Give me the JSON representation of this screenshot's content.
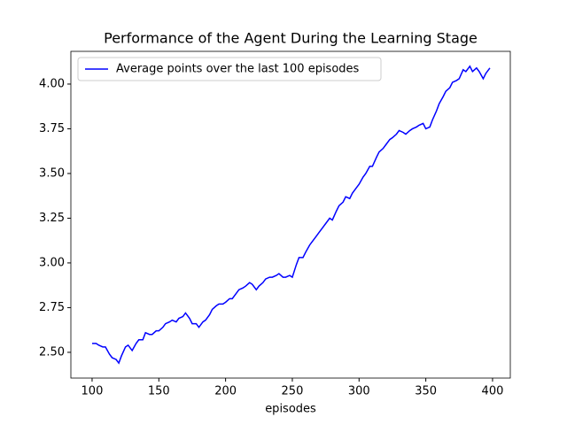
{
  "chart_data": {
    "type": "line",
    "title": "Performance of the Agent During the Learning Stage",
    "x_label": "episodes",
    "x": [
      100,
      103,
      105,
      108,
      110,
      113,
      115,
      118,
      120,
      122,
      125,
      127,
      130,
      133,
      135,
      138,
      140,
      143,
      145,
      148,
      150,
      153,
      155,
      158,
      160,
      163,
      165,
      168,
      170,
      173,
      175,
      178,
      180,
      183,
      185,
      188,
      190,
      193,
      195,
      198,
      200,
      203,
      205,
      208,
      210,
      213,
      215,
      218,
      220,
      223,
      225,
      228,
      230,
      233,
      235,
      238,
      240,
      243,
      245,
      248,
      250,
      253,
      255,
      258,
      260,
      263,
      265,
      268,
      270,
      273,
      275,
      278,
      280,
      283,
      285,
      288,
      290,
      293,
      295,
      298,
      300,
      303,
      305,
      308,
      310,
      313,
      315,
      318,
      320,
      323,
      325,
      328,
      330,
      333,
      335,
      338,
      340,
      343,
      345,
      348,
      350,
      353,
      355,
      358,
      360,
      363,
      365,
      368,
      370,
      373,
      375,
      378,
      380,
      383,
      385,
      388,
      390,
      393,
      395,
      398
    ],
    "series": [
      {
        "name": "Average points over the last 100 episodes",
        "color": "#0000ff",
        "values": [
          2.55,
          2.55,
          2.54,
          2.53,
          2.53,
          2.49,
          2.47,
          2.46,
          2.44,
          2.48,
          2.53,
          2.54,
          2.51,
          2.55,
          2.57,
          2.57,
          2.61,
          2.6,
          2.6,
          2.62,
          2.62,
          2.64,
          2.66,
          2.67,
          2.68,
          2.67,
          2.69,
          2.7,
          2.72,
          2.69,
          2.66,
          2.66,
          2.64,
          2.67,
          2.68,
          2.71,
          2.74,
          2.76,
          2.77,
          2.77,
          2.78,
          2.8,
          2.8,
          2.83,
          2.85,
          2.86,
          2.87,
          2.89,
          2.88,
          2.85,
          2.87,
          2.89,
          2.91,
          2.92,
          2.92,
          2.93,
          2.94,
          2.92,
          2.92,
          2.93,
          2.92,
          2.99,
          3.03,
          3.03,
          3.06,
          3.1,
          3.12,
          3.15,
          3.17,
          3.2,
          3.22,
          3.25,
          3.24,
          3.29,
          3.32,
          3.34,
          3.37,
          3.36,
          3.39,
          3.42,
          3.44,
          3.48,
          3.5,
          3.54,
          3.54,
          3.59,
          3.62,
          3.64,
          3.66,
          3.69,
          3.7,
          3.72,
          3.74,
          3.73,
          3.72,
          3.74,
          3.75,
          3.76,
          3.77,
          3.78,
          3.75,
          3.76,
          3.8,
          3.85,
          3.89,
          3.93,
          3.96,
          3.98,
          4.01,
          4.02,
          4.03,
          4.08,
          4.07,
          4.1,
          4.07,
          4.09,
          4.07,
          4.03,
          4.06,
          4.09
        ]
      }
    ],
    "xlim": [
      84.1,
      413.3
    ],
    "ylim": [
      2.356,
      4.183
    ],
    "xticks": [
      100,
      150,
      200,
      250,
      300,
      350,
      400
    ],
    "yticks": [
      {
        "value": 2.5,
        "label": "2.50"
      },
      {
        "value": 2.75,
        "label": "2.75"
      },
      {
        "value": 3.0,
        "label": "3.00"
      },
      {
        "value": 3.25,
        "label": "3.25"
      },
      {
        "value": 3.5,
        "label": "3.50"
      },
      {
        "value": 3.75,
        "label": "3.75"
      },
      {
        "value": 4.0,
        "label": "4.00"
      }
    ],
    "legend": "upper left"
  }
}
